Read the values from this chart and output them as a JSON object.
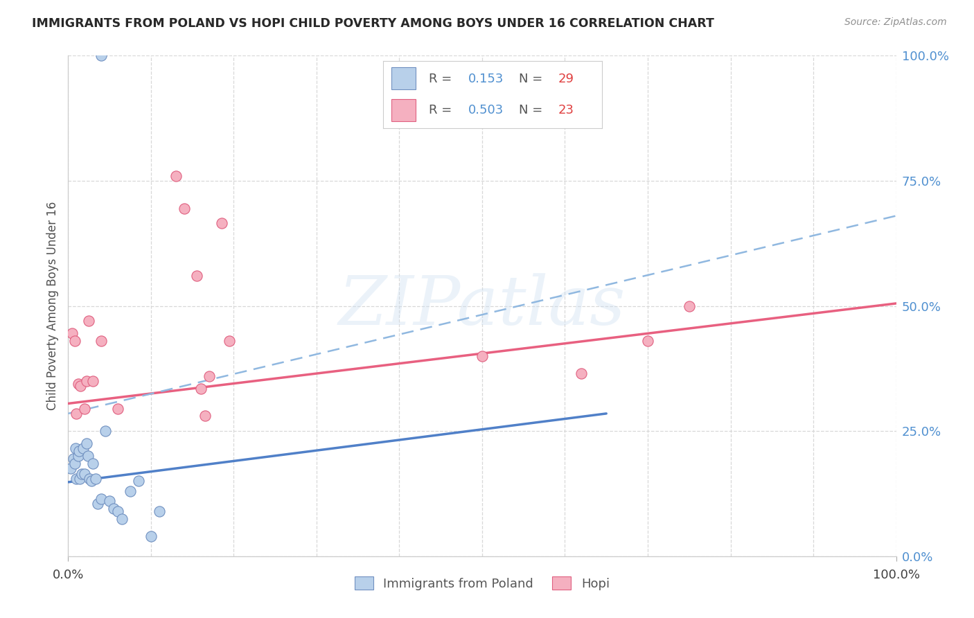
{
  "title": "IMMIGRANTS FROM POLAND VS HOPI CHILD POVERTY AMONG BOYS UNDER 16 CORRELATION CHART",
  "source": "Source: ZipAtlas.com",
  "ylabel": "Child Poverty Among Boys Under 16",
  "ytick_labels": [
    "0.0%",
    "25.0%",
    "50.0%",
    "75.0%",
    "100.0%"
  ],
  "ytick_vals": [
    0.0,
    0.25,
    0.5,
    0.75,
    1.0
  ],
  "xtick_labels": [
    "0.0%",
    "100.0%"
  ],
  "xtick_vals": [
    0.0,
    1.0
  ],
  "legend1_R": "0.153",
  "legend1_N": "29",
  "legend2_R": "0.503",
  "legend2_N": "23",
  "blue_face": "#b8d0ea",
  "blue_edge": "#7090c0",
  "pink_face": "#f5b0c0",
  "pink_edge": "#e06080",
  "blue_line": "#5080c8",
  "pink_line": "#e86080",
  "dash_line": "#90b8e0",
  "grid_color": "#d8d8d8",
  "watermark": "ZIPatlas",
  "blue_x": [
    0.003,
    0.006,
    0.008,
    0.009,
    0.01,
    0.012,
    0.013,
    0.014,
    0.016,
    0.018,
    0.02,
    0.022,
    0.024,
    0.026,
    0.028,
    0.03,
    0.033,
    0.036,
    0.04,
    0.045,
    0.05,
    0.055,
    0.06,
    0.065,
    0.075,
    0.085,
    0.1,
    0.11,
    0.04
  ],
  "blue_y": [
    0.175,
    0.195,
    0.185,
    0.215,
    0.155,
    0.2,
    0.21,
    0.155,
    0.165,
    0.215,
    0.165,
    0.225,
    0.2,
    0.155,
    0.15,
    0.185,
    0.155,
    0.105,
    0.115,
    0.25,
    0.11,
    0.095,
    0.09,
    0.075,
    0.13,
    0.15,
    0.04,
    0.09,
    1.0
  ],
  "pink_x": [
    0.005,
    0.008,
    0.01,
    0.012,
    0.015,
    0.02,
    0.022,
    0.025,
    0.03,
    0.04,
    0.06,
    0.13,
    0.14,
    0.155,
    0.16,
    0.17,
    0.185,
    0.195,
    0.165,
    0.5,
    0.62,
    0.7,
    0.75
  ],
  "pink_y": [
    0.445,
    0.43,
    0.285,
    0.345,
    0.34,
    0.295,
    0.35,
    0.47,
    0.35,
    0.43,
    0.295,
    0.76,
    0.695,
    0.56,
    0.335,
    0.36,
    0.665,
    0.43,
    0.28,
    0.4,
    0.365,
    0.43,
    0.5
  ],
  "blue_trend_x": [
    0.0,
    0.65
  ],
  "blue_trend_y": [
    0.148,
    0.285
  ],
  "pink_trend_x": [
    0.0,
    1.0
  ],
  "pink_trend_y": [
    0.305,
    0.505
  ],
  "dash_trend_x": [
    0.0,
    1.0
  ],
  "dash_trend_y": [
    0.285,
    0.68
  ],
  "figsize": [
    14.06,
    8.92
  ],
  "dpi": 100
}
